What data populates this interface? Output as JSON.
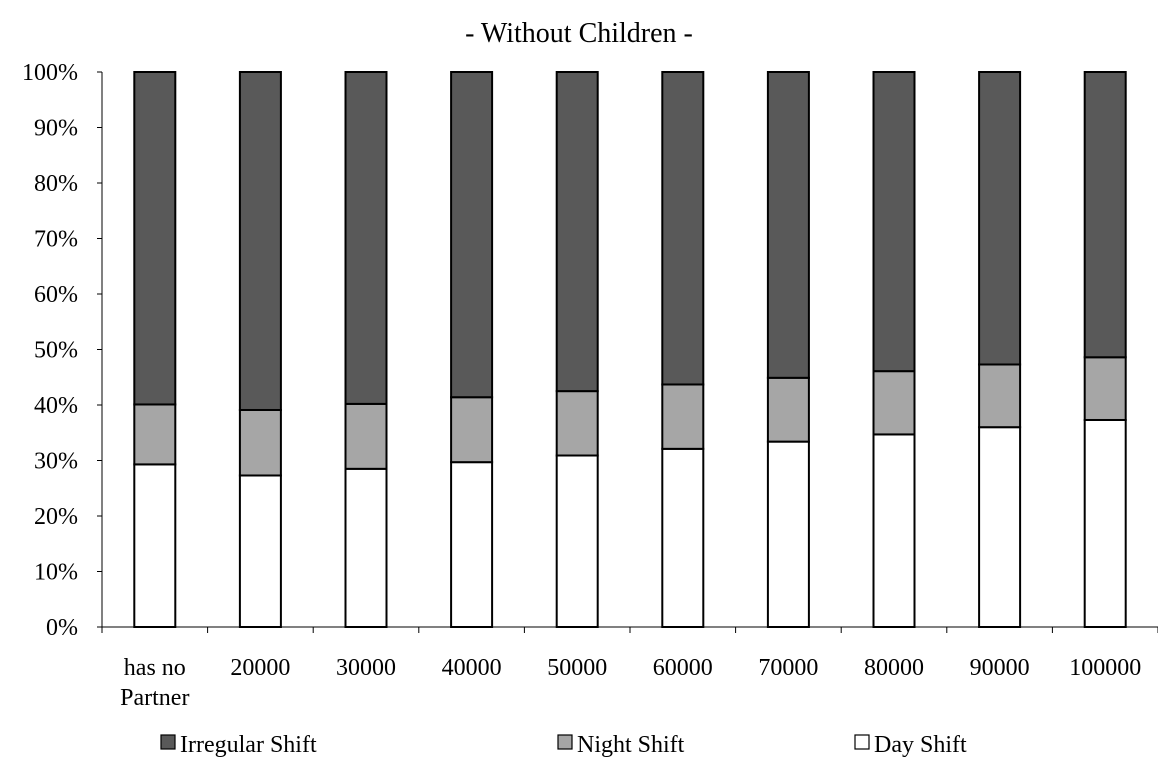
{
  "chart_data": {
    "type": "bar",
    "stacked": true,
    "normalized": true,
    "title": "- Without Children -",
    "xlabel": "",
    "ylabel": "",
    "ylim": [
      0,
      100
    ],
    "y_ticks": [
      "0%",
      "10%",
      "20%",
      "30%",
      "40%",
      "50%",
      "60%",
      "70%",
      "80%",
      "90%",
      "100%"
    ],
    "categories": [
      "has no Partner",
      "20000",
      "30000",
      "40000",
      "50000",
      "60000",
      "70000",
      "80000",
      "90000",
      "100000"
    ],
    "category_lines": [
      [
        "has no",
        "Partner"
      ],
      [
        "20000"
      ],
      [
        "30000"
      ],
      [
        "40000"
      ],
      [
        "50000"
      ],
      [
        "60000"
      ],
      [
        "70000"
      ],
      [
        "80000"
      ],
      [
        "90000"
      ],
      [
        "100000"
      ]
    ],
    "series": [
      {
        "name": "Day Shift",
        "color": "#ffffff",
        "values": [
          29.3,
          27.3,
          28.5,
          29.7,
          30.9,
          32.1,
          33.4,
          34.7,
          36.0,
          37.3
        ]
      },
      {
        "name": "Night Shift",
        "color": "#a6a6a6",
        "values": [
          10.8,
          11.8,
          11.7,
          11.7,
          11.6,
          11.6,
          11.5,
          11.4,
          11.3,
          11.3
        ]
      },
      {
        "name": "Irregular Shift",
        "color": "#595959",
        "values": [
          59.9,
          60.9,
          59.8,
          58.6,
          57.5,
          56.3,
          55.1,
          53.9,
          52.7,
          51.4
        ]
      }
    ],
    "legend": {
      "position": "bottom",
      "order": [
        "Irregular Shift",
        "Night Shift",
        "Day Shift"
      ]
    },
    "grid": false
  }
}
